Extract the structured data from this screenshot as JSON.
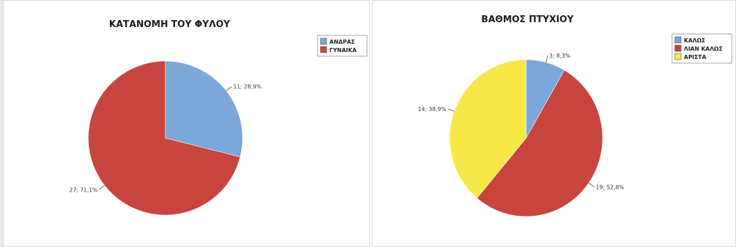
{
  "chart_data": [
    {
      "type": "pie",
      "title": "ΚΑΤΑΝΟΜΗ ΤΟΥ ΦΥΛΟΥ",
      "legend_position": "top-right",
      "series": [
        {
          "name": "ΑΝΔΡΑΣ",
          "value": 11,
          "label": "11; 28,9%",
          "color": "#7ba7d9"
        },
        {
          "name": "ΓΥΝΑΙΚΑ",
          "value": 27,
          "label": "27; 71,1%",
          "color": "#c8453f"
        }
      ]
    },
    {
      "type": "pie",
      "title": "ΒΑΘΜΟΣ ΠΤΥΧΙΟΥ",
      "legend_position": "top-right",
      "series": [
        {
          "name": "ΚΑΛΩΣ",
          "value": 3,
          "label": "3; 8,3%",
          "color": "#7ba7d9"
        },
        {
          "name": "ΛΙΑΝ ΚΑΛΩΣ",
          "value": 19,
          "label": "19; 52,8%",
          "color": "#c8453f"
        },
        {
          "name": "ΑΡΙΣΤΑ",
          "value": 14,
          "label": "14; 38,9%",
          "color": "#f7e847"
        }
      ]
    }
  ]
}
